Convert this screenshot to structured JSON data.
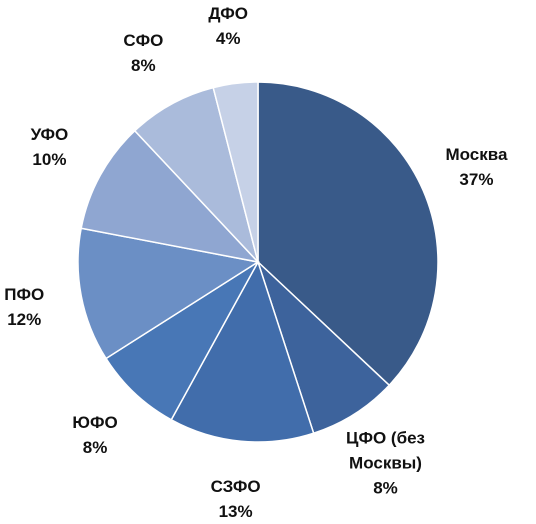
{
  "chart_data": {
    "type": "pie",
    "categories": [
      "Москва",
      "ЦФО (без Москвы)",
      "СЗФО",
      "ЮФО",
      "ПФО",
      "УФО",
      "СФО",
      "ДФО"
    ],
    "values": [
      37,
      8,
      13,
      8,
      12,
      10,
      8,
      4
    ],
    "value_labels": [
      "37%",
      "8%",
      "13%",
      "8%",
      "12%",
      "10%",
      "8%",
      "4%"
    ],
    "colors": [
      "#395a89",
      "#3d639c",
      "#416dab",
      "#4877b6",
      "#6b8fc5",
      "#8fa6d1",
      "#aabbdb",
      "#c6d1e7"
    ]
  }
}
